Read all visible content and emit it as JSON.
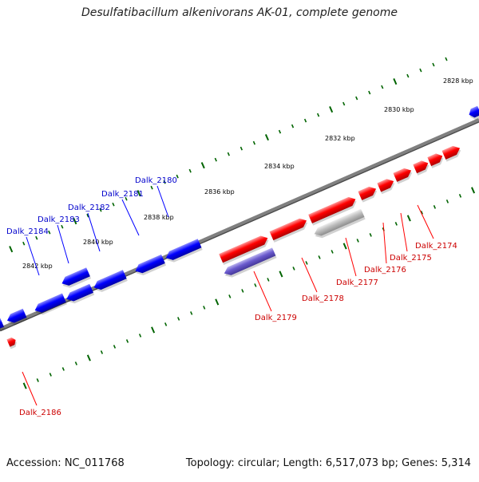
{
  "title": "Desulfatibacillum alkenivorans AK-01, complete genome",
  "footer": {
    "accession": "Accession: NC_011768",
    "summary": "Topology: circular; Length: 6,517,073 bp; Genes: 5,314"
  },
  "colors": {
    "forward_gene": "#ff0000",
    "reverse_gene": "#0000ff",
    "pseudogene": "#b8b8b8",
    "rna_gene": "#6a5acd",
    "backbone": "#808080",
    "tick": "#006400",
    "scale_label": "#000000"
  },
  "scale_labels": [
    "2828 kbp",
    "2830 kbp",
    "2832 kbp",
    "2834 kbp",
    "2836 kbp",
    "2838 kbp",
    "2840 kbp",
    "2842 kbp"
  ],
  "gene_labels_reverse": [
    "Dalk_2180",
    "Dalk_2181",
    "Dalk_2182",
    "Dalk_2183",
    "Dalk_2184"
  ],
  "gene_labels_forward": [
    "Dalk_2174",
    "Dalk_2175",
    "Dalk_2176",
    "Dalk_2177",
    "Dalk_2178",
    "Dalk_2179",
    "Dalk_2186"
  ]
}
